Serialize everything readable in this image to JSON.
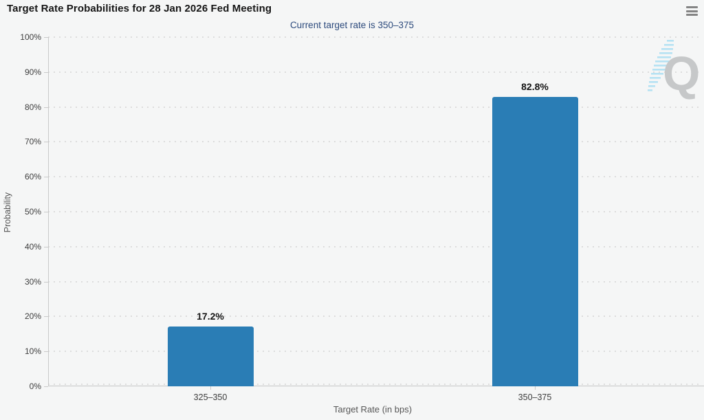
{
  "header": {
    "title": "Target Rate Probabilities for 28 Jan 2026 Fed Meeting",
    "subtitle": "Current target rate is 350–375"
  },
  "icons": {
    "menu": "hamburger-icon",
    "watermark": "q-logo-watermark"
  },
  "colors": {
    "background": "#f5f6f6",
    "bar": "#2a7db5",
    "subtitle_text": "#2c4a7c",
    "title_text": "#161616",
    "gridline": "#dcdcdc",
    "axis_line": "#c9c9c9",
    "tick_label": "#3d3d3d",
    "axis_title": "#555555",
    "hamburger": "#848484",
    "watermark_gray": "#c6c8c9",
    "watermark_blue": "#b5e2f3"
  },
  "chart_data": {
    "type": "bar",
    "title": "Target Rate Probabilities for 28 Jan 2026 Fed Meeting",
    "subtitle": "Current target rate is 350–375",
    "categories": [
      "325–350",
      "350–375"
    ],
    "values": [
      17.2,
      82.8
    ],
    "value_labels": [
      "17.2%",
      "82.8%"
    ],
    "xlabel": "Target Rate (in bps)",
    "ylabel": "Probability",
    "ylim": [
      0,
      100
    ],
    "y_ticks": [
      "0%",
      "10%",
      "20%",
      "30%",
      "40%",
      "50%",
      "60%",
      "70%",
      "80%",
      "90%",
      "100%"
    ],
    "grid": "dotted horizontal gridlines at each 10%",
    "legend": "none",
    "bar_color": "#2a7db5"
  },
  "watermark": {
    "letter": "Q"
  }
}
